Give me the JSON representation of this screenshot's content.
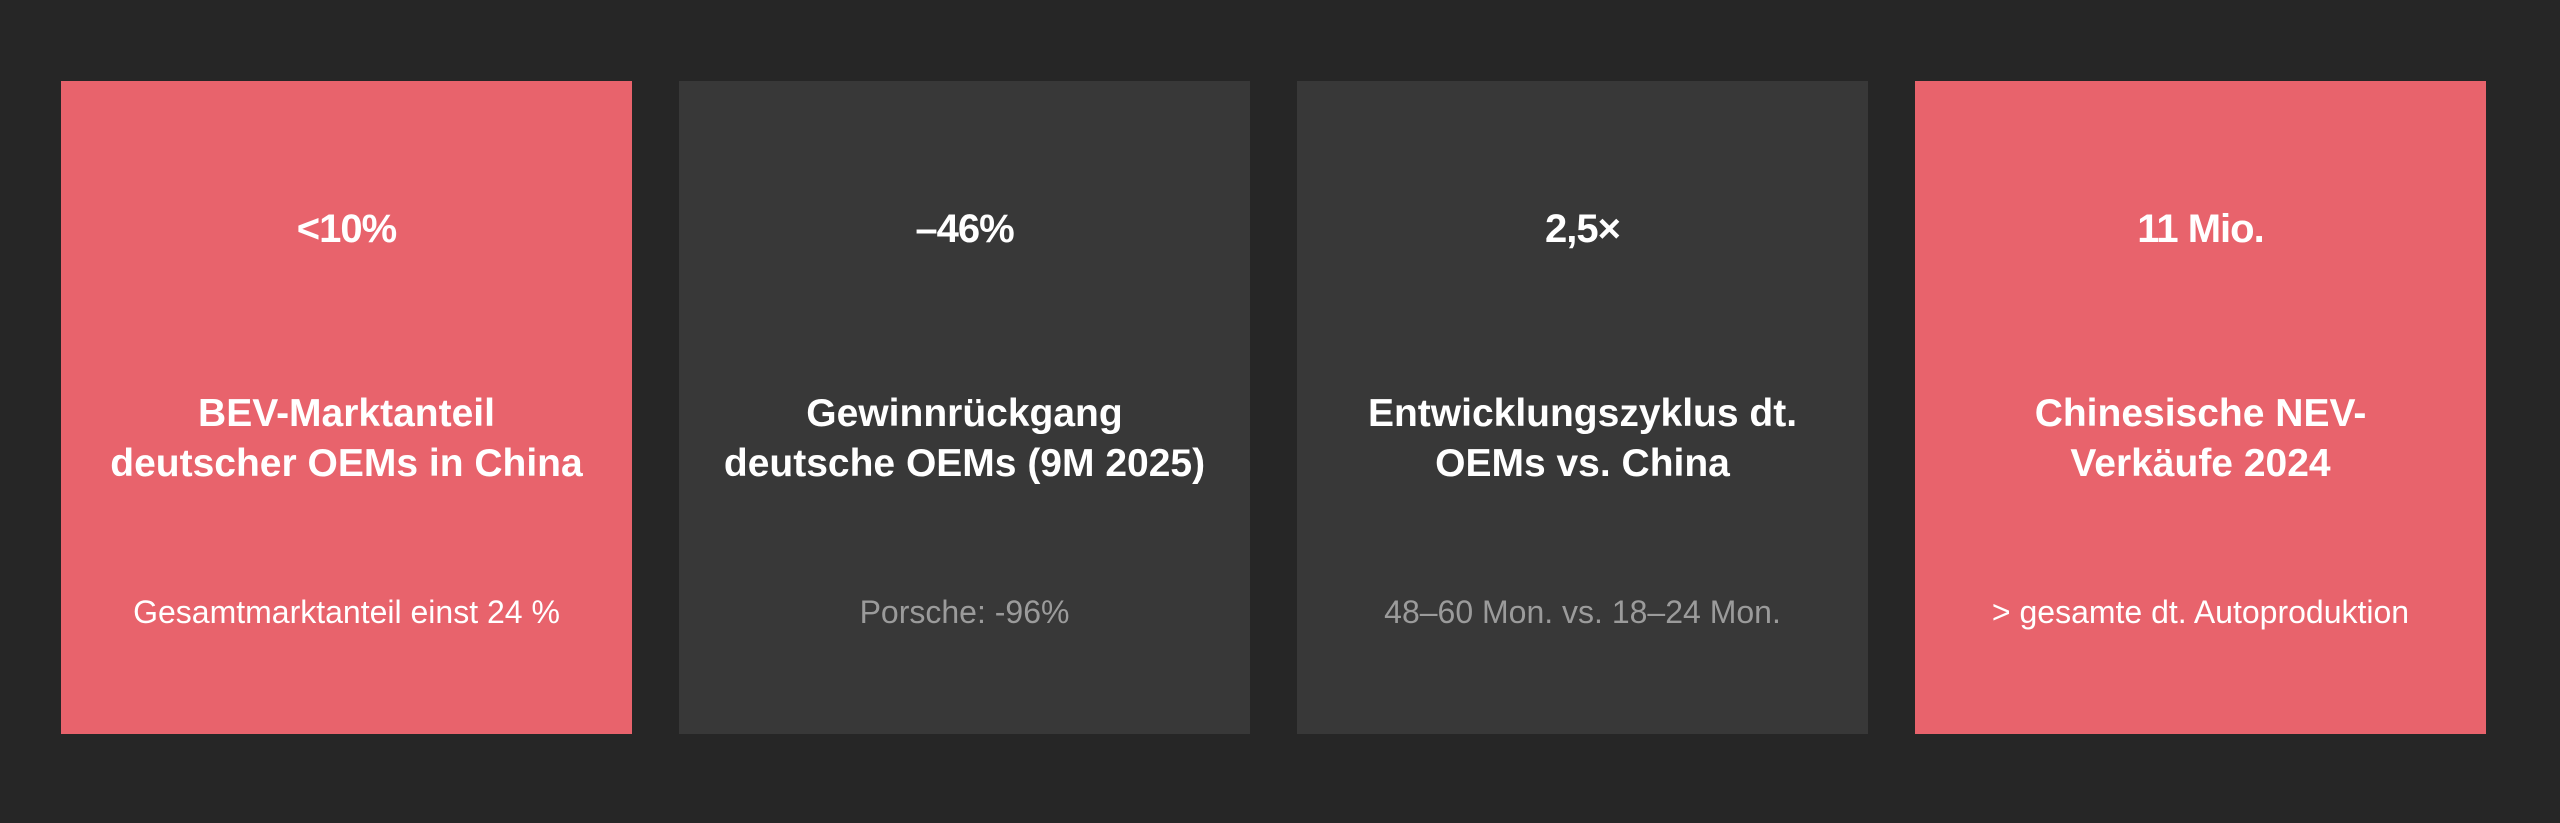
{
  "cards": [
    {
      "value": "<10%",
      "label": "BEV-Marktanteil deutscher OEMs in China",
      "note": "Gesamtmarktanteil einst 24 %",
      "color": "#e8636c"
    },
    {
      "value": "–46%",
      "label": "Gewinnrückgang deutsche OEMs (9M 2025)",
      "note": "Porsche: -96%",
      "color": "#383838"
    },
    {
      "value": "2,5×",
      "label": "Entwicklungszyklus dt. OEMs vs. China",
      "note": "48–60 Mon. vs. 18–24 Mon.",
      "color": "#383838"
    },
    {
      "value": "11 Mio.",
      "label": "Chinesische NEV-Verkäufe 2024",
      "note": "> gesamte dt. Autoproduktion",
      "color": "#e8636c"
    }
  ],
  "colors": {
    "background": "#262626",
    "accent": "#e8636c",
    "dark_card": "#383838",
    "muted_text": "#9b9b9b"
  }
}
